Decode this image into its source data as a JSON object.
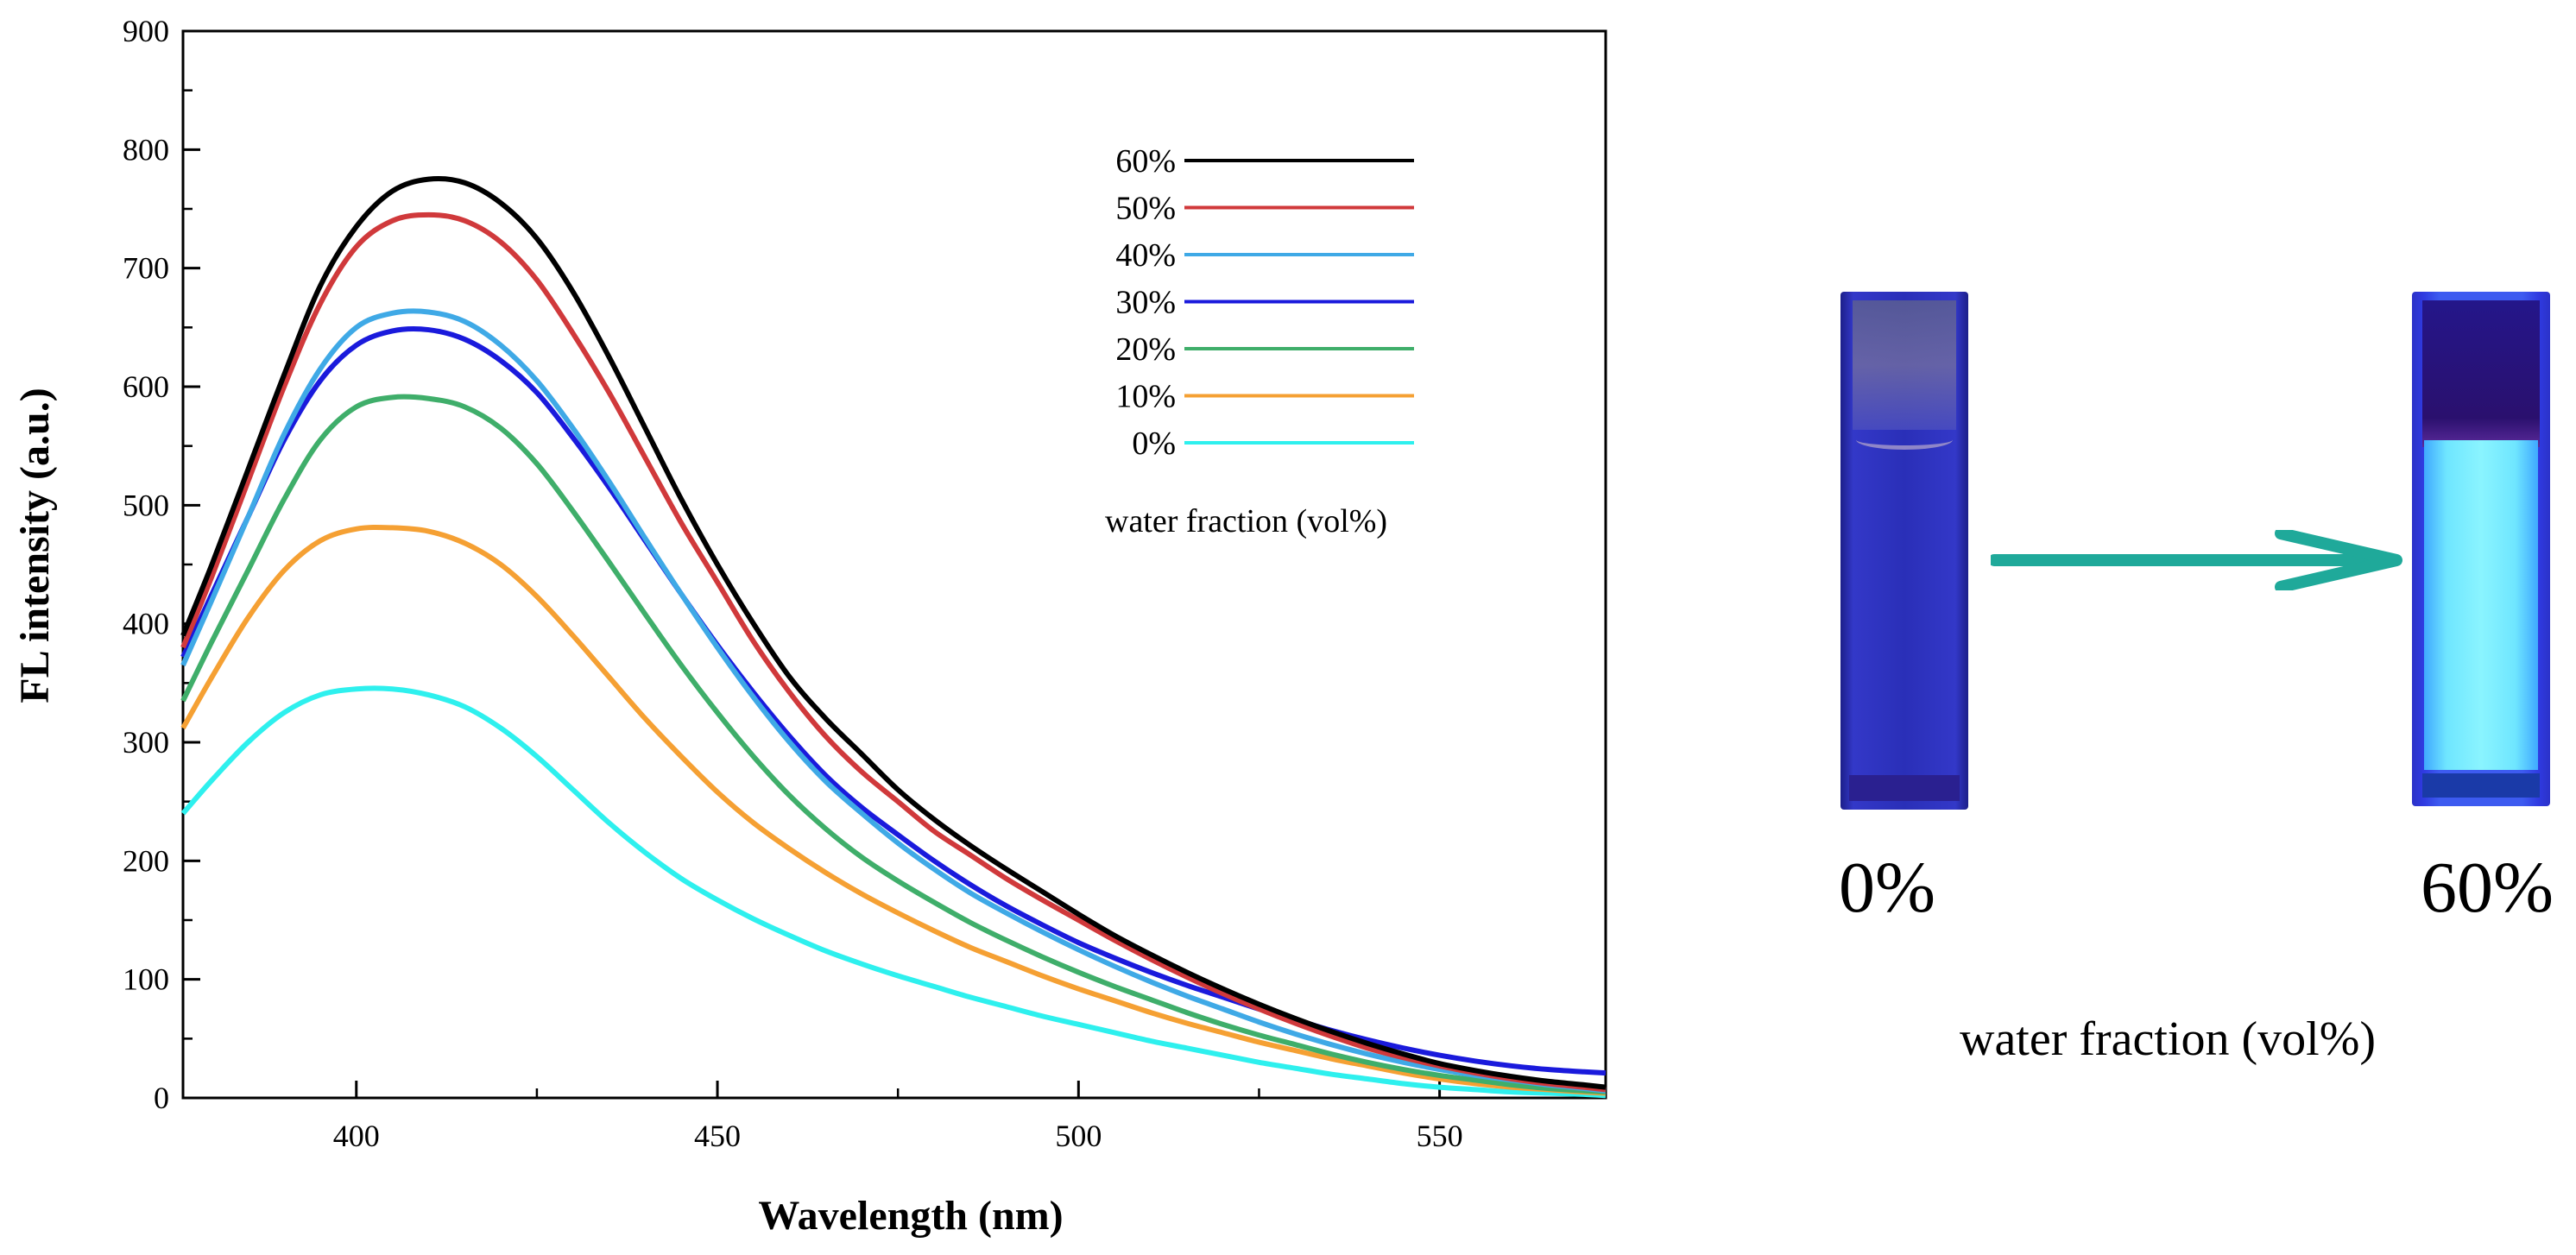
{
  "chart_data": {
    "type": "line",
    "xlabel": "Wavelength (nm)",
    "ylabel": "FL intensity (a.u.)",
    "xlim": [
      376,
      573
    ],
    "ylim": [
      0,
      900
    ],
    "x_ticks": [
      400,
      450,
      500,
      550
    ],
    "y_ticks": [
      0,
      100,
      200,
      300,
      400,
      500,
      600,
      700,
      800,
      900
    ],
    "legend_title": "water fraction (vol%)",
    "legend_position": "top-right",
    "grid": false,
    "x": [
      376,
      380,
      385,
      390,
      395,
      400,
      405,
      410,
      415,
      420,
      425,
      430,
      435,
      440,
      445,
      450,
      455,
      460,
      465,
      470,
      475,
      480,
      485,
      490,
      495,
      500,
      505,
      510,
      515,
      520,
      525,
      530,
      535,
      540,
      545,
      550,
      555,
      560,
      565,
      570,
      573
    ],
    "series": [
      {
        "name": "60%",
        "color": "#000000",
        "values": [
          390,
          450,
          530,
          610,
          685,
          735,
          765,
          775,
          772,
          755,
          725,
          680,
          625,
          565,
          505,
          450,
          400,
          355,
          320,
          290,
          260,
          235,
          213,
          193,
          174,
          155,
          137,
          121,
          106,
          92,
          79,
          67,
          56,
          46,
          37,
          29,
          23,
          18,
          14,
          11,
          9
        ]
      },
      {
        "name": "50%",
        "color": "#d0393b",
        "values": [
          380,
          440,
          520,
          600,
          670,
          718,
          740,
          745,
          740,
          722,
          690,
          645,
          595,
          540,
          485,
          435,
          385,
          342,
          305,
          275,
          250,
          225,
          205,
          185,
          167,
          150,
          133,
          117,
          102,
          88,
          75,
          63,
          52,
          42,
          34,
          27,
          21,
          16,
          12,
          9,
          7
        ]
      },
      {
        "name": "40%",
        "color": "#3fa9e6",
        "values": [
          365,
          420,
          490,
          560,
          615,
          650,
          662,
          663,
          655,
          635,
          605,
          565,
          520,
          472,
          425,
          380,
          338,
          300,
          267,
          240,
          215,
          193,
          173,
          156,
          140,
          125,
          111,
          98,
          86,
          75,
          64,
          54,
          45,
          37,
          30,
          24,
          19,
          15,
          11,
          8,
          6
        ]
      },
      {
        "name": "30%",
        "color": "#1a1adc",
        "values": [
          372,
          425,
          490,
          555,
          605,
          635,
          647,
          648,
          640,
          622,
          595,
          557,
          515,
          470,
          425,
          382,
          342,
          305,
          272,
          245,
          222,
          200,
          180,
          162,
          146,
          131,
          118,
          106,
          95,
          85,
          75,
          66,
          57,
          49,
          42,
          36,
          31,
          27,
          24,
          22,
          21
        ]
      },
      {
        "name": "20%",
        "color": "#3fae6a",
        "values": [
          335,
          385,
          445,
          505,
          555,
          583,
          591,
          590,
          583,
          565,
          535,
          495,
          452,
          408,
          365,
          325,
          288,
          255,
          227,
          203,
          183,
          165,
          148,
          133,
          119,
          106,
          94,
          83,
          72,
          62,
          53,
          45,
          37,
          30,
          24,
          19,
          15,
          11,
          8,
          6,
          5
        ]
      },
      {
        "name": "10%",
        "color": "#f5a033",
        "values": [
          312,
          355,
          405,
          445,
          470,
          480,
          481,
          478,
          468,
          450,
          423,
          390,
          355,
          320,
          288,
          258,
          232,
          210,
          190,
          172,
          156,
          141,
          127,
          115,
          103,
          92,
          82,
          72,
          63,
          55,
          47,
          40,
          33,
          27,
          21,
          16,
          12,
          9,
          7,
          5,
          4
        ]
      },
      {
        "name": "0%",
        "color": "#2ef0ee",
        "values": [
          240,
          268,
          300,
          325,
          340,
          345,
          345,
          340,
          330,
          312,
          288,
          260,
          232,
          207,
          185,
          167,
          151,
          137,
          124,
          113,
          103,
          94,
          85,
          77,
          69,
          62,
          55,
          48,
          42,
          36,
          30,
          25,
          20,
          16,
          12,
          9,
          7,
          5,
          4,
          3,
          2
        ]
      }
    ]
  },
  "photo": {
    "label_before": "0%",
    "label_after": "60%",
    "caption": "water fraction (vol%)",
    "arrow_color": "#1fa99a"
  }
}
